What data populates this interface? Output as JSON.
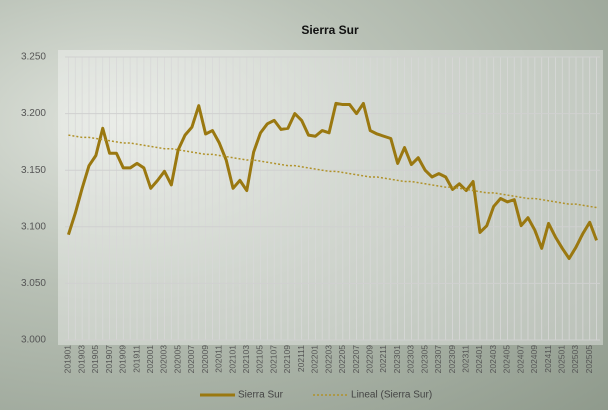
{
  "chart_data": {
    "type": "line",
    "title": "Sierra Sur",
    "categories": [
      "201901",
      null,
      "201903",
      null,
      "201905",
      null,
      "201907",
      null,
      "201909",
      null,
      "201911",
      null,
      "202001",
      null,
      "202003",
      null,
      "202005",
      null,
      "202007",
      null,
      "202009",
      null,
      "202011",
      null,
      "202101",
      null,
      "202103",
      null,
      "202105",
      null,
      "202107",
      null,
      "202109",
      null,
      "202111",
      null,
      "202201",
      null,
      "202203",
      null,
      "202205",
      null,
      "202207",
      null,
      "202209",
      null,
      "202211",
      null,
      "202301",
      null,
      "202303",
      null,
      "202305",
      null,
      "202307",
      null,
      "202309",
      null,
      "202311",
      null,
      "202401",
      null,
      "202403",
      null,
      "202405",
      null,
      "202407",
      null,
      "202409",
      null,
      "202411",
      null,
      "202501",
      null,
      "202503",
      null,
      "202505",
      null
    ],
    "series": [
      {
        "name": "Sierra Sur",
        "color": "#9a7810",
        "style": "solid",
        "values": [
          3.093,
          3.112,
          3.134,
          3.154,
          3.163,
          3.187,
          3.165,
          3.165,
          3.152,
          3.152,
          3.156,
          3.152,
          3.134,
          3.141,
          3.149,
          3.137,
          3.168,
          3.181,
          3.188,
          3.207,
          3.182,
          3.185,
          3.174,
          3.159,
          3.134,
          3.141,
          3.132,
          3.166,
          3.183,
          3.191,
          3.194,
          3.186,
          3.187,
          3.2,
          3.194,
          3.181,
          3.18,
          3.185,
          3.183,
          3.209,
          3.208,
          3.208,
          3.2,
          3.209,
          3.185,
          3.182,
          3.18,
          3.178,
          3.156,
          3.17,
          3.155,
          3.161,
          3.15,
          3.144,
          3.147,
          3.144,
          3.133,
          3.138,
          3.132,
          3.14,
          3.095,
          3.101,
          3.118,
          3.125,
          3.122,
          3.124,
          3.101,
          3.108,
          3.097,
          3.081,
          3.103,
          3.091,
          3.081,
          3.072,
          3.082,
          3.094,
          3.104,
          3.088
        ]
      },
      {
        "name": "Lineal (Sierra Sur)",
        "color": "#b0922a",
        "style": "dotted",
        "values": [
          3.181,
          3.18,
          3.179,
          3.179,
          3.178,
          3.177,
          3.176,
          3.175,
          3.174,
          3.174,
          3.173,
          3.172,
          3.171,
          3.17,
          3.169,
          3.169,
          3.168,
          3.167,
          3.166,
          3.165,
          3.164,
          3.164,
          3.163,
          3.162,
          3.161,
          3.16,
          3.159,
          3.159,
          3.158,
          3.157,
          3.156,
          3.155,
          3.154,
          3.154,
          3.153,
          3.152,
          3.151,
          3.15,
          3.149,
          3.149,
          3.148,
          3.147,
          3.146,
          3.145,
          3.144,
          3.144,
          3.143,
          3.142,
          3.141,
          3.14,
          3.14,
          3.139,
          3.138,
          3.137,
          3.136,
          3.135,
          3.135,
          3.134,
          3.133,
          3.132,
          3.131,
          3.13,
          3.13,
          3.129,
          3.128,
          3.127,
          3.126,
          3.125,
          3.125,
          3.124,
          3.123,
          3.122,
          3.121,
          3.12,
          3.12,
          3.119,
          3.118,
          3.117
        ]
      }
    ],
    "ylim": [
      3.0,
      3.25
    ],
    "yticks": [
      {
        "value": 3.0,
        "label": "3.000"
      },
      {
        "value": 3.05,
        "label": "3.050"
      },
      {
        "value": 3.1,
        "label": "3.100"
      },
      {
        "value": 3.15,
        "label": "3.150"
      },
      {
        "value": 3.2,
        "label": "3.200"
      },
      {
        "value": 3.25,
        "label": "3.250"
      }
    ],
    "grid": true,
    "legend": "bottom"
  }
}
